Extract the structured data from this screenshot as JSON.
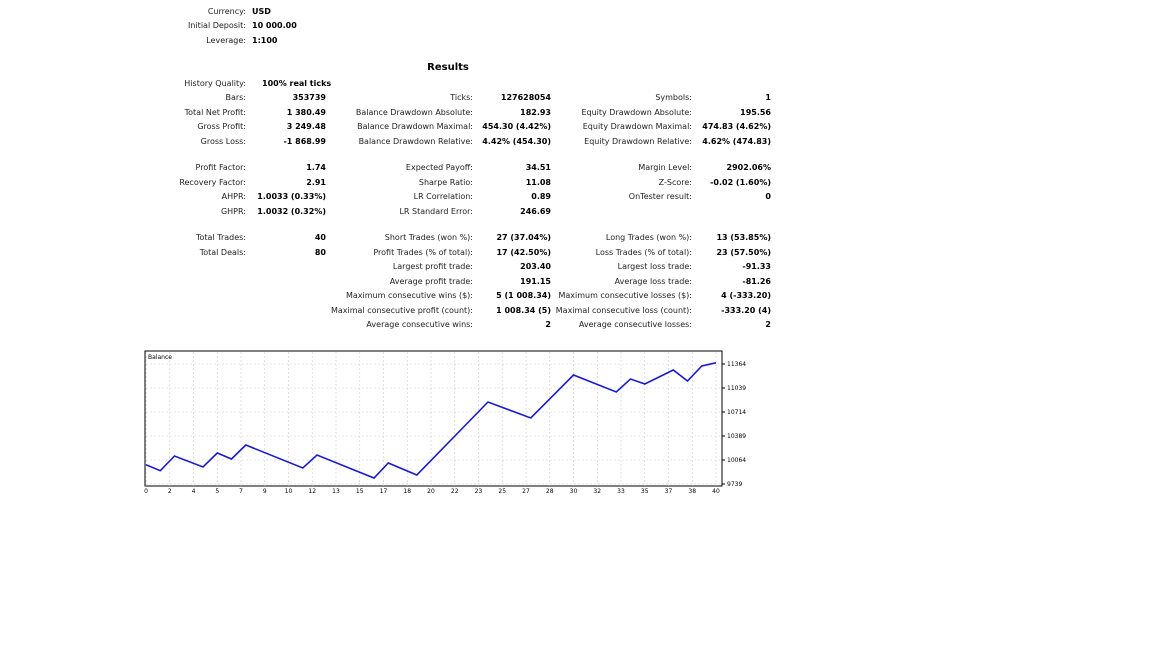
{
  "settings": [
    {
      "label": "Currency:",
      "value": "USD"
    },
    {
      "label": "Initial Deposit:",
      "value": "10 000.00"
    },
    {
      "label": "Leverage:",
      "value": "1:100"
    }
  ],
  "results": {
    "title": "Results",
    "rows": [
      [
        [
          "History Quality:",
          "100% real ticks"
        ],
        null,
        null
      ],
      [
        [
          "Bars:",
          "353739"
        ],
        [
          "Ticks:",
          "127628054"
        ],
        [
          "Symbols:",
          "1"
        ]
      ],
      [
        [
          "Total Net Profit:",
          "1 380.49"
        ],
        [
          "Balance Drawdown Absolute:",
          "182.93"
        ],
        [
          "Equity Drawdown Absolute:",
          "195.56"
        ]
      ],
      [
        [
          "Gross Profit:",
          "3 249.48"
        ],
        [
          "Balance Drawdown Maximal:",
          "454.30 (4.42%)"
        ],
        [
          "Equity Drawdown Maximal:",
          "474.83 (4.62%)"
        ]
      ],
      [
        [
          "Gross Loss:",
          "-1 868.99"
        ],
        [
          "Balance Drawdown Relative:",
          "4.42% (454.30)"
        ],
        [
          "Equity Drawdown Relative:",
          "4.62% (474.83)"
        ]
      ],
      [
        [
          "Profit Factor:",
          "1.74"
        ],
        [
          "Expected Payoff:",
          "34.51"
        ],
        [
          "Margin Level:",
          "2902.06%"
        ]
      ],
      [
        [
          "Recovery Factor:",
          "2.91"
        ],
        [
          "Sharpe Ratio:",
          "11.08"
        ],
        [
          "Z-Score:",
          "-0.02 (1.60%)"
        ]
      ],
      [
        [
          "AHPR:",
          "1.0033 (0.33%)"
        ],
        [
          "LR Correlation:",
          "0.89"
        ],
        [
          "OnTester result:",
          "0"
        ]
      ],
      [
        [
          "GHPR:",
          "1.0032 (0.32%)"
        ],
        [
          "LR Standard Error:",
          "246.69"
        ],
        null
      ],
      [
        [
          "Total Trades:",
          "40"
        ],
        [
          "Short Trades (won %):",
          "27 (37.04%)"
        ],
        [
          "Long Trades (won %):",
          "13 (53.85%)"
        ]
      ],
      [
        [
          "Total Deals:",
          "80"
        ],
        [
          "Profit Trades (% of total):",
          "17 (42.50%)"
        ],
        [
          "Loss Trades (% of total):",
          "23 (57.50%)"
        ]
      ],
      [
        null,
        [
          "Largest profit trade:",
          "203.40"
        ],
        [
          "Largest loss trade:",
          "-91.33"
        ]
      ],
      [
        null,
        [
          "Average profit trade:",
          "191.15"
        ],
        [
          "Average loss trade:",
          "-81.26"
        ]
      ],
      [
        null,
        [
          "Maximum consecutive wins ($):",
          "5 (1 008.34)"
        ],
        [
          "Maximum consecutive losses ($):",
          "4 (-333.20)"
        ]
      ],
      [
        null,
        [
          "Maximal consecutive profit (count):",
          "1 008.34 (5)"
        ],
        [
          "Maximal consecutive loss (count):",
          "-333.20 (4)"
        ]
      ],
      [
        null,
        [
          "Average consecutive wins:",
          "2"
        ],
        [
          "Average consecutive losses:",
          "2"
        ]
      ]
    ]
  },
  "chart_data": {
    "type": "line",
    "title": "Balance",
    "line_color": "#1a1acc",
    "grid": true,
    "x_tick_labels": [
      "0",
      "2",
      "4",
      "5",
      "7",
      "9",
      "10",
      "12",
      "13",
      "15",
      "17",
      "18",
      "20",
      "22",
      "23",
      "25",
      "27",
      "28",
      "30",
      "32",
      "33",
      "35",
      "37",
      "38",
      "40"
    ],
    "y_tick_labels": [
      "9739",
      "10064",
      "10389",
      "10714",
      "11039",
      "11364"
    ],
    "xlim": [
      0,
      40
    ],
    "ylim": [
      9739,
      11364
    ],
    "series": [
      {
        "x": [
          0,
          1,
          2,
          4,
          5,
          6,
          7,
          11,
          12,
          16,
          17,
          19,
          24,
          27,
          30,
          33,
          34,
          35,
          37,
          38,
          39,
          40
        ],
        "y": [
          10000,
          9919,
          10118,
          9969,
          10159,
          10077,
          10267,
          9956,
          10132,
          9820,
          10023,
          9861,
          10849,
          10633,
          11215,
          10985,
          11161,
          11093,
          11283,
          11134,
          11337,
          11380
        ]
      }
    ]
  }
}
